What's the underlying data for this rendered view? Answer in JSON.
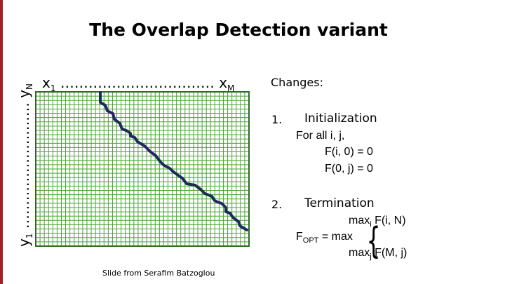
{
  "slide": {
    "title": "The Overlap Detection variant",
    "x_axis": {
      "start": "x",
      "start_sub": "1",
      "dots": " …………………………… ",
      "end": "x",
      "end_sub": "M"
    },
    "y_axis": {
      "start": "y",
      "start_sub": "1",
      "dots": " ……………………… ",
      "end": "y",
      "end_sub": "N"
    },
    "credit": "Slide from Serafim Batzoglou",
    "grid": {
      "line_color": "#4aa335",
      "border_color": "#2f6a22",
      "path_color": "#1c2a5e"
    },
    "changes": {
      "heading": "Changes:",
      "step1": {
        "num": "1.",
        "title": "Initialization",
        "l1": "For all i, j,",
        "l2": "F(i, 0) = 0",
        "l3": "F(0, j) = 0"
      },
      "step2": {
        "num": "2.",
        "title": "Termination",
        "max_i_a": "max",
        "max_i_sub": "i",
        "max_i_b": " F(i, N)",
        "fopt_a": "F",
        "fopt_sub": "OPT",
        "fopt_b": " = max",
        "max_j_a": "max",
        "max_j_sub": "j",
        "max_j_b": " F(M, j)"
      }
    }
  }
}
